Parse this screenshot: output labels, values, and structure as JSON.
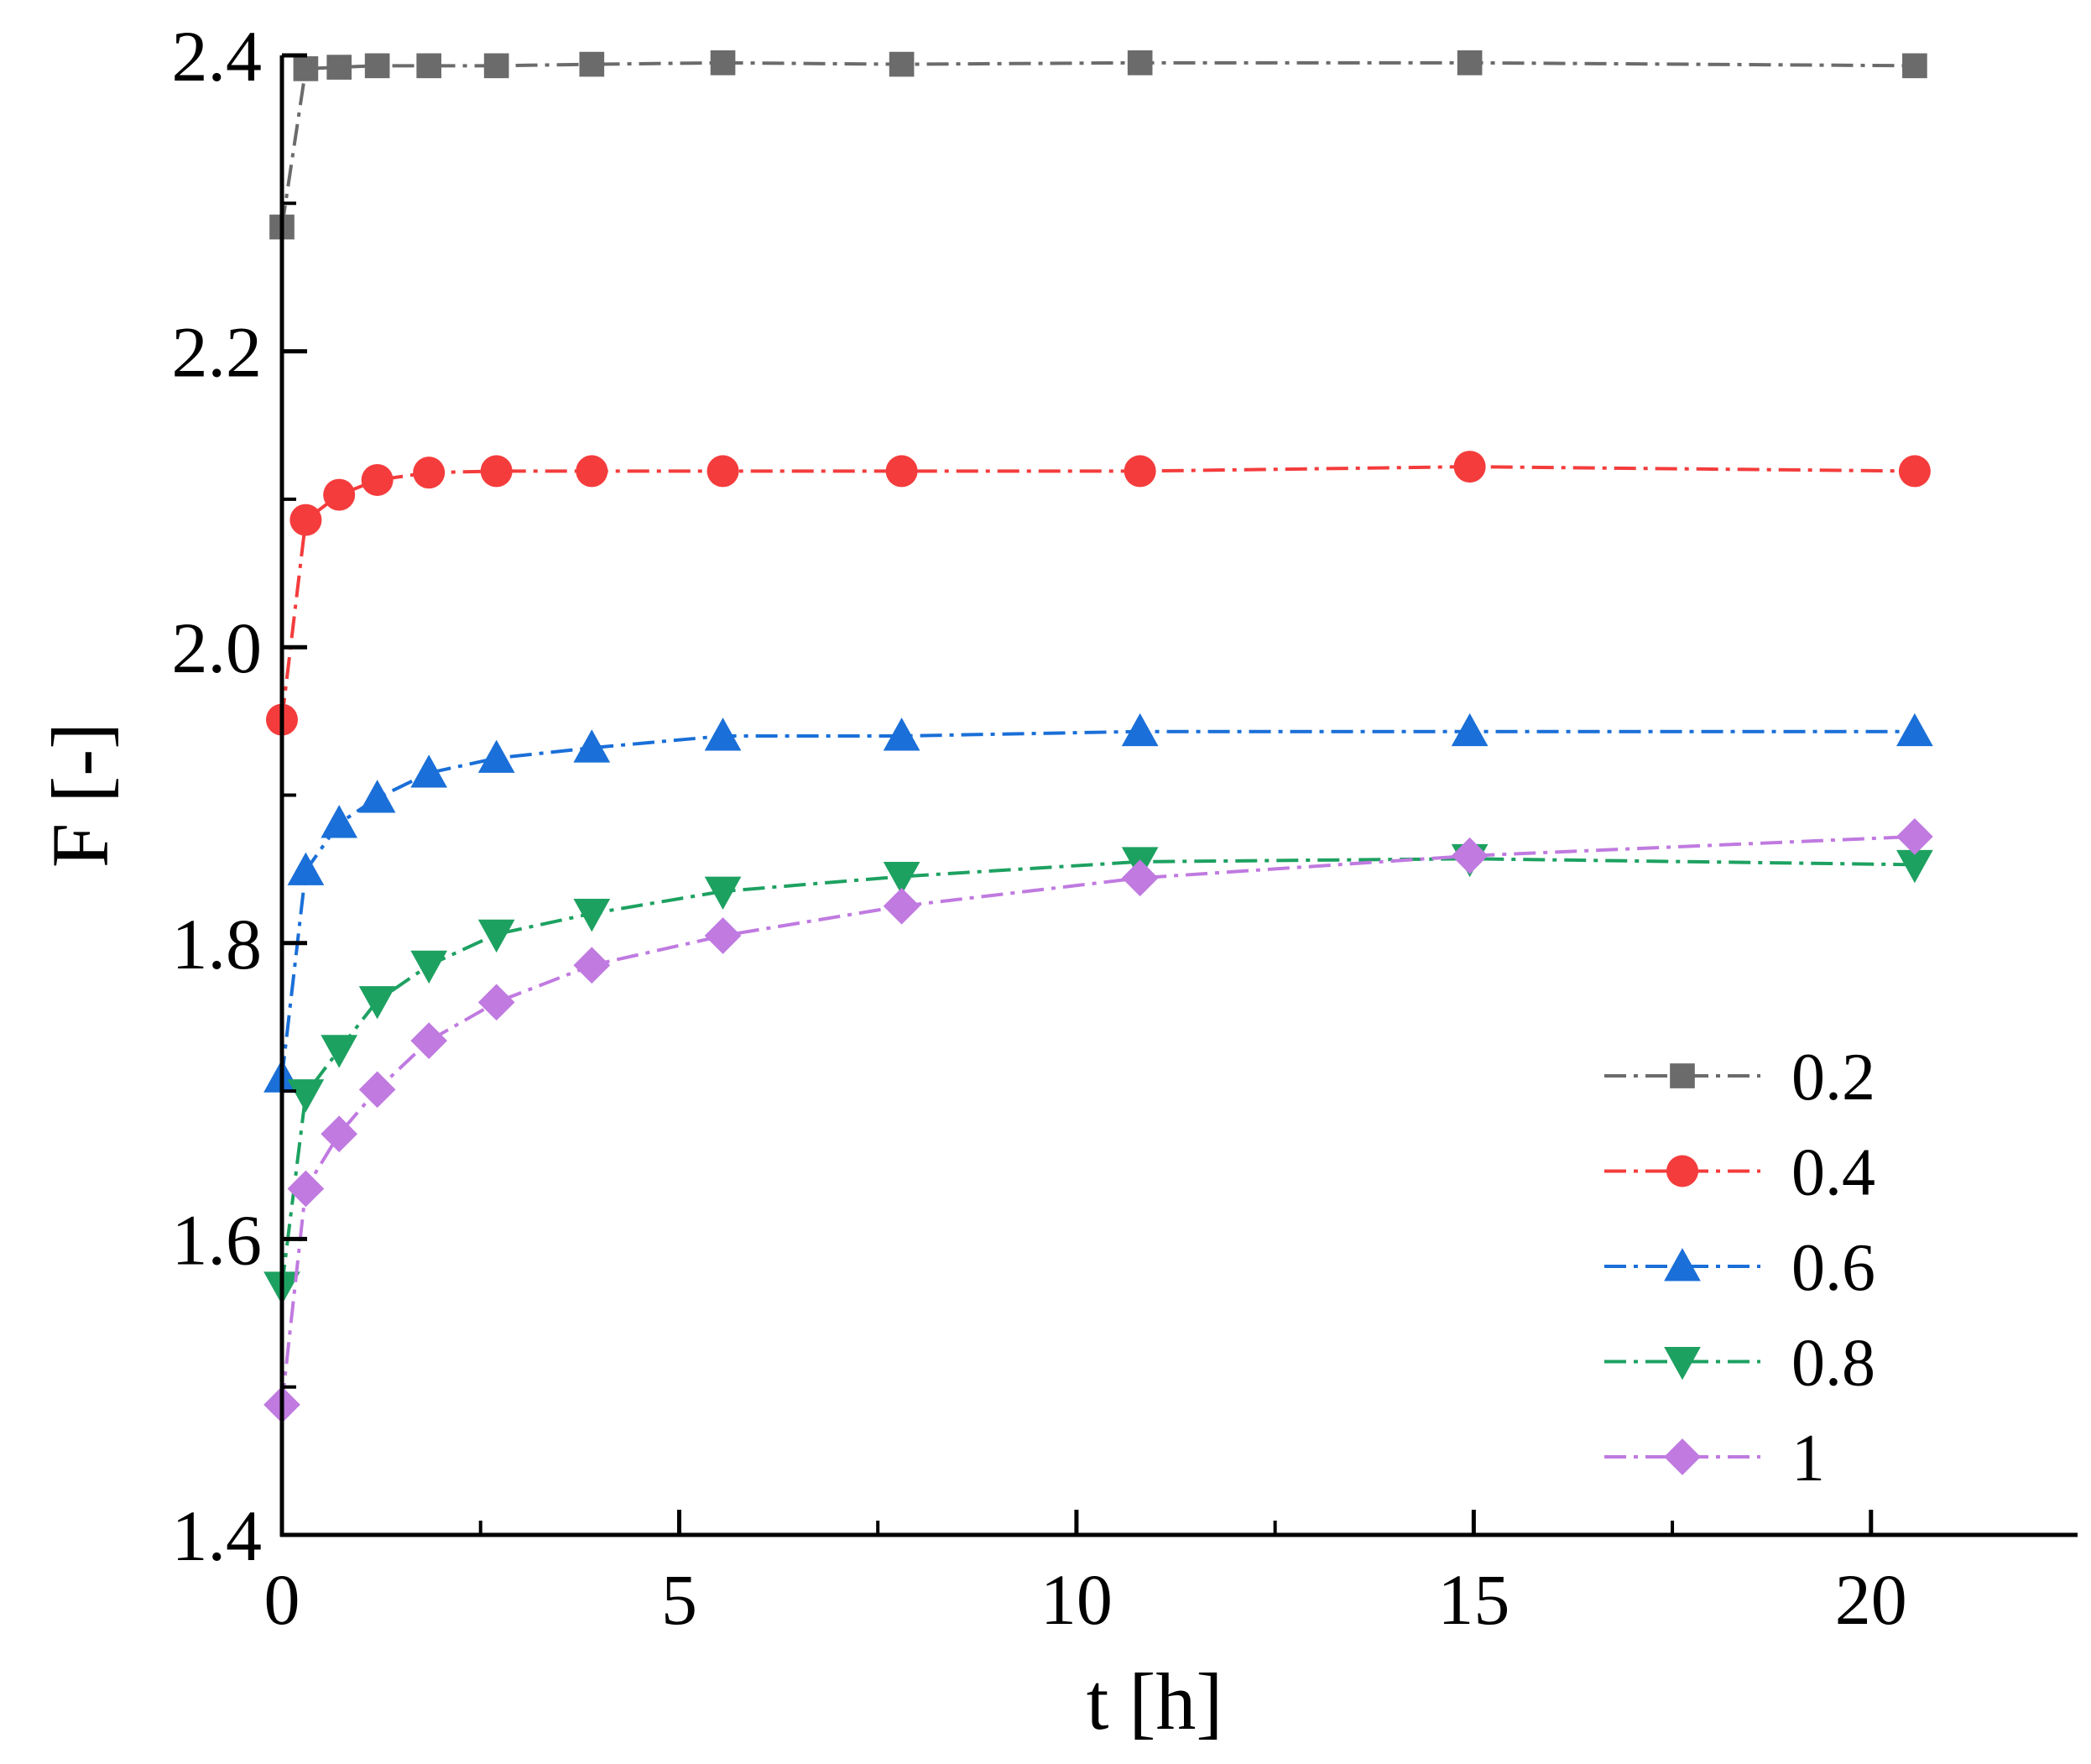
{
  "chart_data": {
    "type": "line",
    "title": "",
    "xlabel": "t [h]",
    "ylabel": "F [-]",
    "xlim": [
      0,
      22.6
    ],
    "ylim": [
      1.4,
      2.4
    ],
    "x_ticks": [
      0,
      5,
      10,
      15,
      20
    ],
    "x_tick_labels": [
      "0",
      "5",
      "10",
      "15",
      "20"
    ],
    "x_minor_ticks": [
      2.5,
      7.5,
      12.5,
      17.5
    ],
    "y_ticks": [
      1.4,
      1.6,
      1.8,
      2.0,
      2.2,
      2.4
    ],
    "y_tick_labels": [
      "1.4",
      "1.6",
      "1.8",
      "2.0",
      "2.2",
      "2.4"
    ],
    "y_minor_ticks": [
      1.5,
      1.7,
      1.9,
      2.1,
      2.3
    ],
    "grid": false,
    "legend_position": "bottom-right",
    "x": [
      0,
      0.3,
      0.72,
      1.2,
      1.85,
      2.7,
      3.9,
      5.55,
      7.8,
      10.8,
      14.95,
      20.55
    ],
    "series": [
      {
        "name": "0.2",
        "marker": "square",
        "color": "#6b6b6b",
        "values": [
          2.284,
          2.391,
          2.392,
          2.393,
          2.393,
          2.393,
          2.394,
          2.395,
          2.394,
          2.395,
          2.395,
          2.393
        ]
      },
      {
        "name": "0.4",
        "marker": "circle",
        "color": "#f43c3c",
        "values": [
          1.951,
          2.086,
          2.103,
          2.113,
          2.118,
          2.119,
          2.119,
          2.119,
          2.119,
          2.119,
          2.122,
          2.119
        ]
      },
      {
        "name": "0.6",
        "marker": "triangle-up",
        "color": "#1a6fd8",
        "values": [
          1.709,
          1.849,
          1.881,
          1.898,
          1.915,
          1.925,
          1.932,
          1.94,
          1.94,
          1.943,
          1.943,
          1.943
        ]
      },
      {
        "name": "0.8",
        "marker": "triangle-down",
        "color": "#1da161",
        "values": [
          1.568,
          1.698,
          1.728,
          1.761,
          1.785,
          1.806,
          1.82,
          1.835,
          1.845,
          1.855,
          1.857,
          1.853
        ]
      },
      {
        "name": "1",
        "marker": "diamond",
        "color": "#c07ae0",
        "values": [
          1.488,
          1.634,
          1.671,
          1.701,
          1.734,
          1.76,
          1.785,
          1.805,
          1.825,
          1.844,
          1.859,
          1.872
        ]
      }
    ]
  }
}
